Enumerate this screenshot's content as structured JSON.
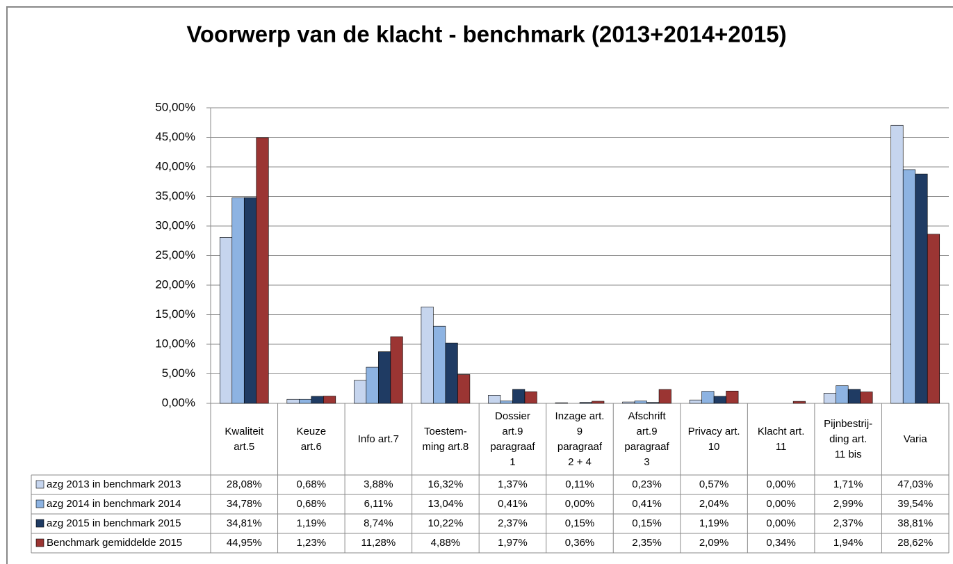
{
  "chart_data": {
    "type": "bar",
    "title": "Voorwerp van de klacht - benchmark (2013+2014+2015)",
    "categories": [
      "Kwaliteit\nart.5",
      "Keuze\nart.6",
      "Info art.7",
      "Toestem-\nming art.8",
      "Dossier\nart.9\nparagraaf\n1",
      "Inzage art.\n9\nparagraaf\n2 + 4",
      "Afschrift\nart.9\nparagraaf\n3",
      "Privacy art.\n10",
      "Klacht art.\n11",
      "Pijnbestrij-\nding art.\n11 bis",
      "Varia"
    ],
    "ylim": [
      0,
      50
    ],
    "yticks": [
      {
        "value": 0,
        "label": "0,00%"
      },
      {
        "value": 5,
        "label": "5,00%"
      },
      {
        "value": 10,
        "label": "10,00%"
      },
      {
        "value": 15,
        "label": "15,00%"
      },
      {
        "value": 20,
        "label": "20,00%"
      },
      {
        "value": 25,
        "label": "25,00%"
      },
      {
        "value": 30,
        "label": "30,00%"
      },
      {
        "value": 35,
        "label": "35,00%"
      },
      {
        "value": 40,
        "label": "40,00%"
      },
      {
        "value": 45,
        "label": "45,00%"
      },
      {
        "value": 50,
        "label": "50,00%"
      }
    ],
    "grid": true,
    "series": [
      {
        "name": "azg 2013 in benchmark 2013",
        "color": "#c6d5ee",
        "values": [
          28.08,
          0.68,
          3.88,
          16.32,
          1.37,
          0.11,
          0.23,
          0.57,
          0.0,
          1.71,
          47.03
        ],
        "value_labels": [
          "28,08%",
          "0,68%",
          "3,88%",
          "16,32%",
          "1,37%",
          "0,11%",
          "0,23%",
          "0,57%",
          "0,00%",
          "1,71%",
          "47,03%"
        ]
      },
      {
        "name": "azg 2014 in benchmark 2014",
        "color": "#8db3e2",
        "values": [
          34.78,
          0.68,
          6.11,
          13.04,
          0.41,
          0.0,
          0.41,
          2.04,
          0.0,
          2.99,
          39.54
        ],
        "value_labels": [
          "34,78%",
          "0,68%",
          "6,11%",
          "13,04%",
          "0,41%",
          "0,00%",
          "0,41%",
          "2,04%",
          "0,00%",
          "2,99%",
          "39,54%"
        ]
      },
      {
        "name": "azg 2015 in benchmark 2015",
        "color": "#1f3b63",
        "values": [
          34.81,
          1.19,
          8.74,
          10.22,
          2.37,
          0.15,
          0.15,
          1.19,
          0.0,
          2.37,
          38.81
        ],
        "value_labels": [
          "34,81%",
          "1,19%",
          "8,74%",
          "10,22%",
          "2,37%",
          "0,15%",
          "0,15%",
          "1,19%",
          "0,00%",
          "2,37%",
          "38,81%"
        ]
      },
      {
        "name": "Benchmark gemiddelde 2015",
        "color": "#9b3533",
        "values": [
          44.95,
          1.23,
          11.28,
          4.88,
          1.97,
          0.36,
          2.35,
          2.09,
          0.34,
          1.94,
          28.62
        ],
        "value_labels": [
          "44,95%",
          "1,23%",
          "11,28%",
          "4,88%",
          "1,97%",
          "0,36%",
          "2,35%",
          "2,09%",
          "0,34%",
          "1,94%",
          "28,62%"
        ]
      }
    ]
  }
}
